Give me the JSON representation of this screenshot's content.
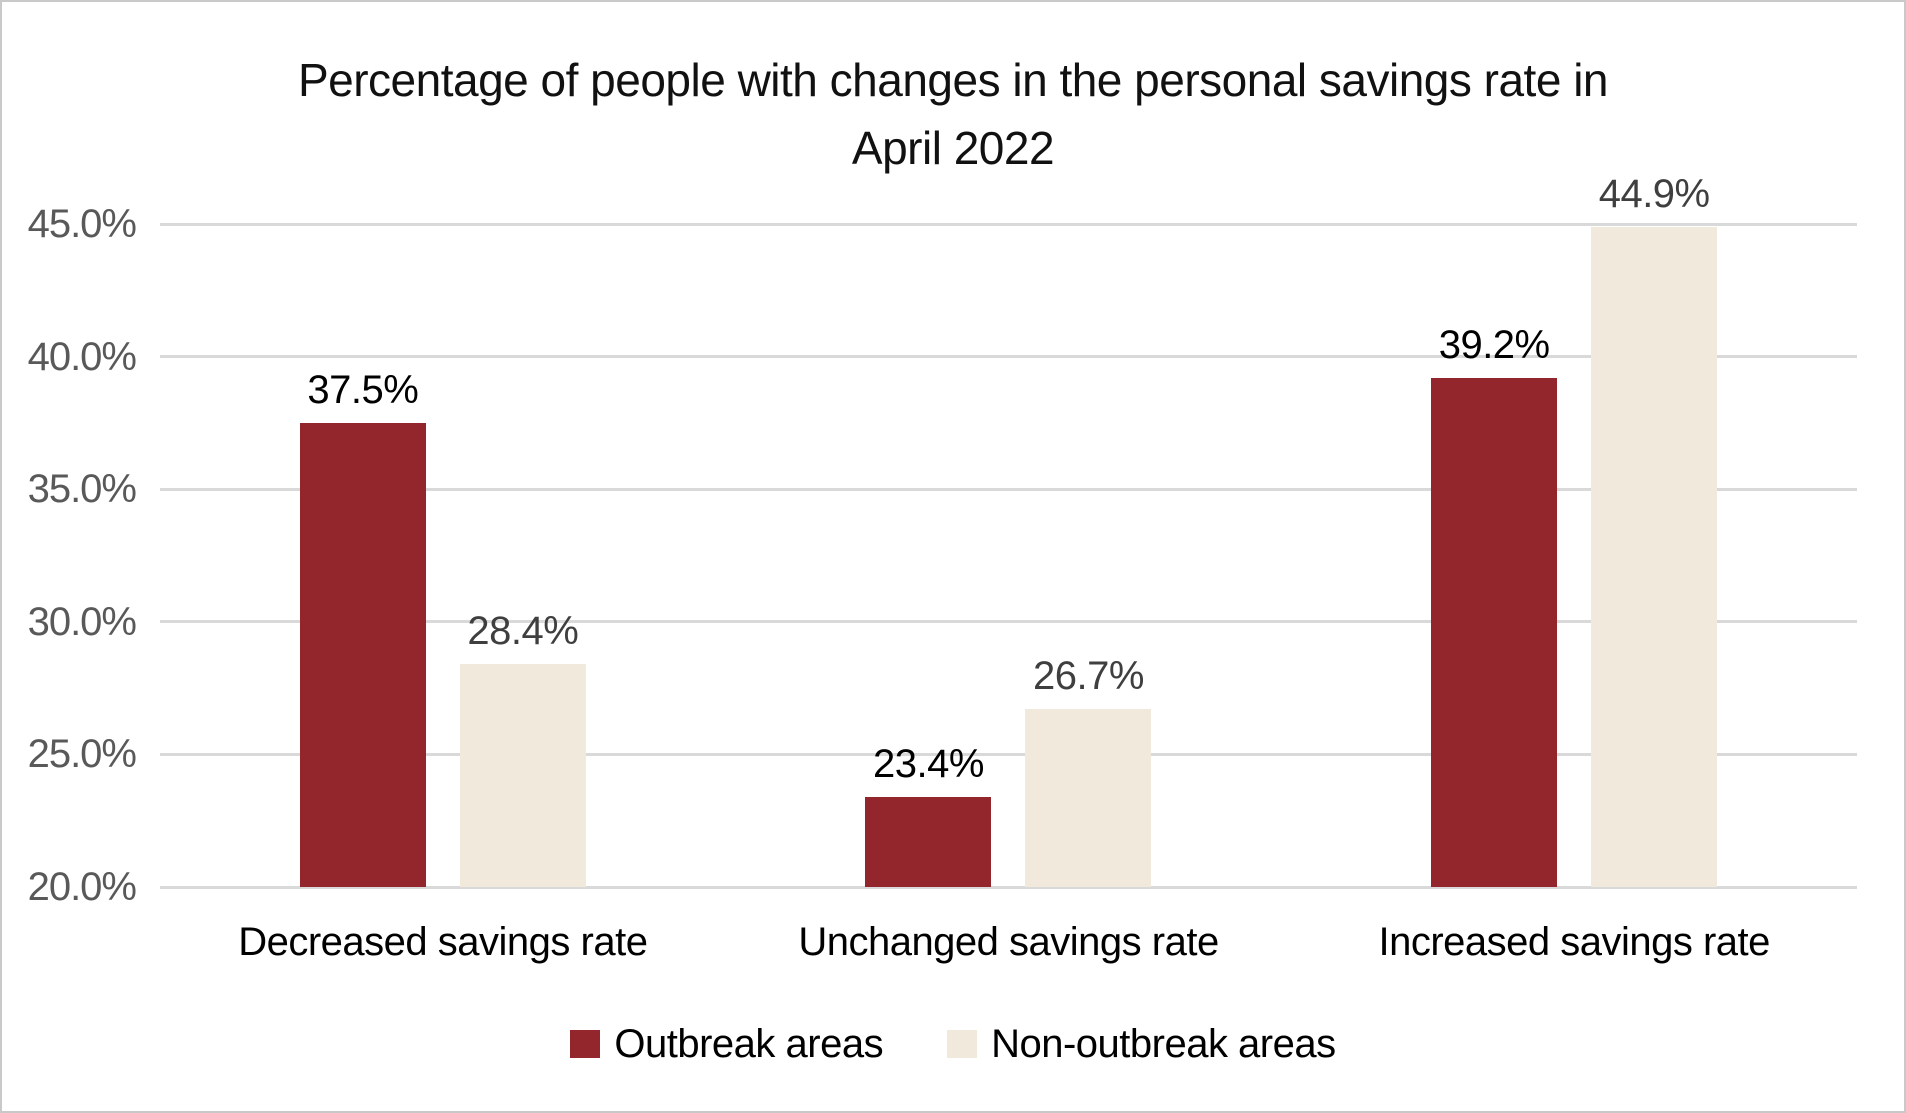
{
  "chart_data": {
    "type": "bar",
    "title": "Percentage of people with changes in the personal savings rate in April 2022",
    "title_lines": [
      "Percentage of people with changes in the personal savings rate in",
      "April 2022"
    ],
    "categories": [
      "Decreased savings rate",
      "Unchanged savings rate",
      "Increased savings rate"
    ],
    "series": [
      {
        "name": "Outbreak areas",
        "values": [
          37.5,
          23.4,
          39.2
        ],
        "data_labels": [
          "37.5%",
          "23.4%",
          "39.2%"
        ],
        "color": "#92262C",
        "data_label_color": "#000000"
      },
      {
        "name": "Non-outbreak areas",
        "values": [
          28.4,
          26.7,
          44.9
        ],
        "data_labels": [
          "28.4%",
          "26.7%",
          "44.9%"
        ],
        "color": "#F0E9DC",
        "data_label_color": "#3F3F3F"
      }
    ],
    "ylim": [
      20,
      45
    ],
    "ytick_step": 5,
    "ytick_labels": [
      "20.0%",
      "25.0%",
      "30.0%",
      "35.0%",
      "40.0%",
      "45.0%"
    ],
    "grid": true,
    "legend_position": "bottom",
    "colors": {
      "gridline": "#D9D9D9",
      "ytick_label": "#595959",
      "category_label": "#000000",
      "legend_label": "#000000",
      "title": "#111111",
      "frame_border": "#C9C9C9",
      "background": "#FFFFFF"
    }
  }
}
